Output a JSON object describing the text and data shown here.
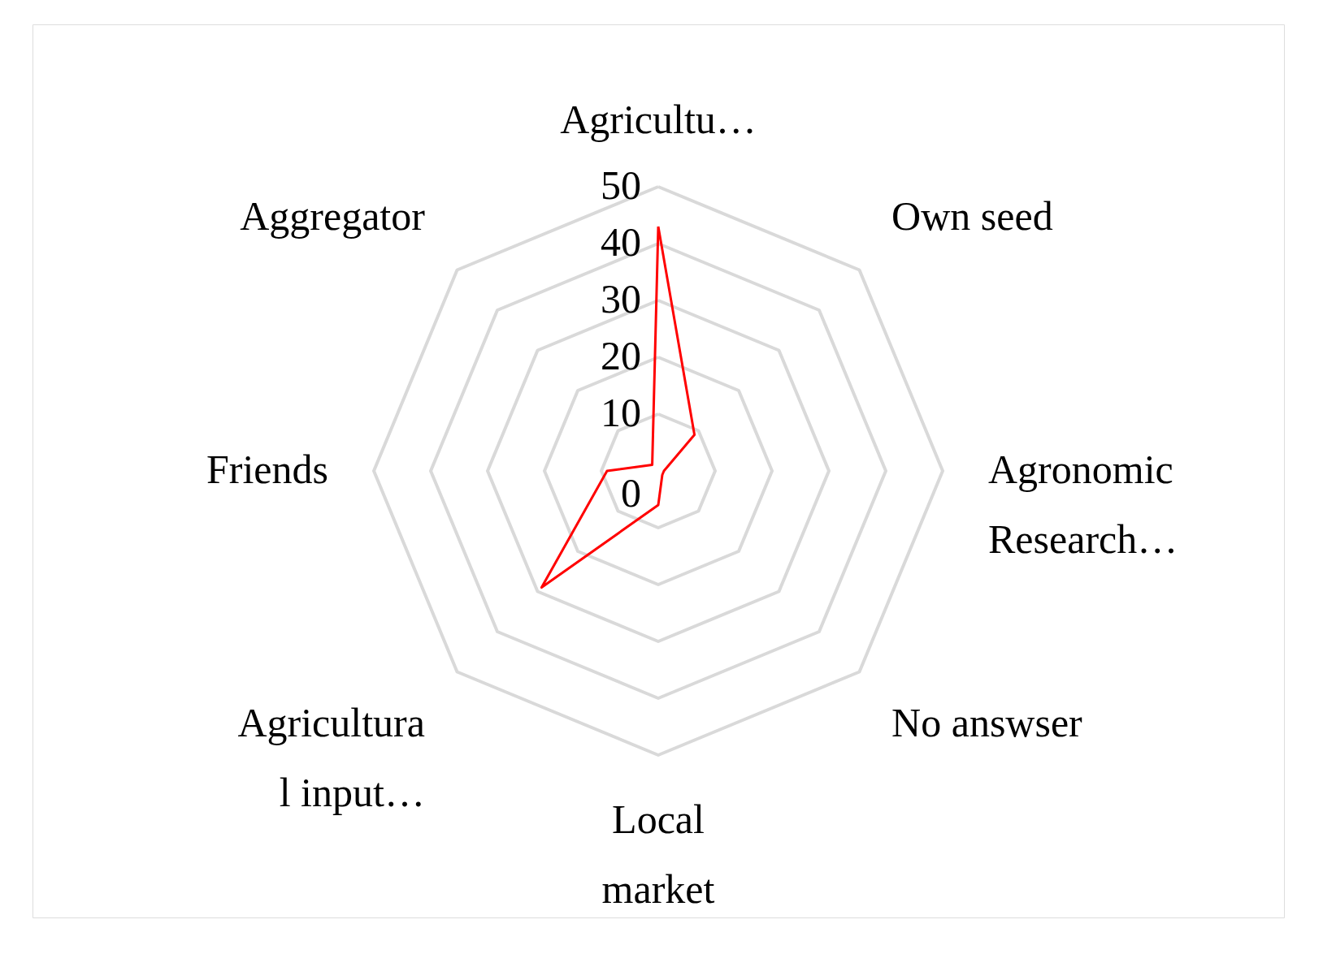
{
  "chart_data": {
    "type": "radar",
    "categories": [
      "Agricultu…",
      "Own seed",
      "Agronomic\nResearch…",
      "No answser",
      "Local\nmarket",
      "Agricultura\nl input…",
      "Friends",
      "Aggregator"
    ],
    "series": [
      {
        "color": "#ff0000",
        "values": [
          43,
          9,
          1,
          1,
          6,
          29,
          9,
          1.5
        ]
      }
    ],
    "ylim": [
      0,
      50
    ],
    "yticks": [
      0,
      10,
      20,
      30,
      40,
      50
    ],
    "grid": true,
    "marker": "none",
    "line_style": "solid"
  }
}
